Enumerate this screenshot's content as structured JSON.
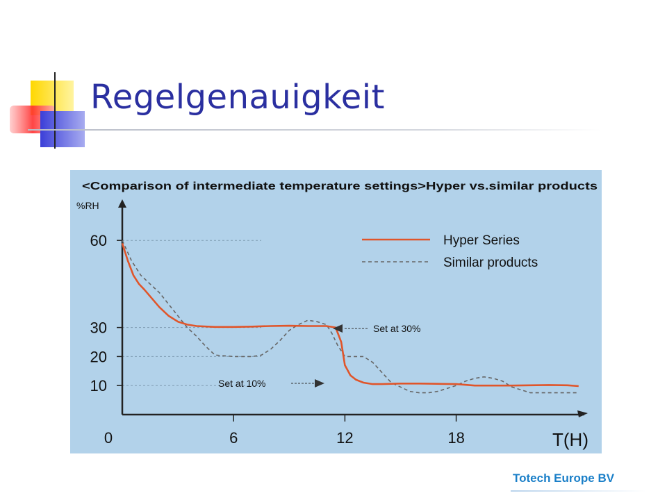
{
  "slide": {
    "title": "Regelgenauigkeit",
    "footer": "Totech Europe BV"
  },
  "chart_data": {
    "type": "line",
    "title": "<Comparison of intermediate temperature settings>Hyper vs.similar products",
    "xlabel": "T(H)",
    "ylabel": "%RH",
    "xlim": [
      0,
      25
    ],
    "ylim": [
      0,
      72
    ],
    "x_ticks": [
      0,
      6,
      12,
      18
    ],
    "x_tick_labels": [
      "0",
      "6",
      "12",
      "18"
    ],
    "y_ticks": [
      60,
      30,
      20,
      10
    ],
    "y_tick_labels": [
      "60",
      "30",
      "20",
      "10"
    ],
    "legend_position": "top-right",
    "background_color": "#b2d2ea",
    "series": [
      {
        "name": "Hyper Series",
        "style": "solid",
        "color": "#e0552a",
        "x": [
          0,
          0.3,
          0.6,
          0.9,
          1.2,
          1.6,
          2.0,
          2.5,
          3.0,
          3.5,
          4.0,
          5.0,
          6.0,
          7.0,
          8.0,
          9.0,
          10.0,
          11.0,
          11.5,
          11.8,
          12.0,
          12.3,
          12.6,
          13.0,
          13.5,
          14.0,
          15.0,
          16.0,
          17.0,
          18.0,
          19.0,
          20.0,
          21.0,
          22.0,
          23.0,
          24.0,
          24.6
        ],
        "y": [
          59,
          53,
          48,
          45,
          43,
          40,
          37,
          34,
          32,
          31,
          30.5,
          30.2,
          30.2,
          30.3,
          30.5,
          30.6,
          30.5,
          30.5,
          30,
          25,
          17,
          13.5,
          12,
          11,
          10.5,
          10.5,
          10.7,
          10.7,
          10.6,
          10.5,
          10.0,
          10.0,
          10.0,
          10.1,
          10.2,
          10.1,
          9.8
        ]
      },
      {
        "name": "Similar products",
        "style": "dashed",
        "color": "#666666",
        "x": [
          0,
          0.5,
          1.0,
          1.5,
          2.0,
          2.5,
          3.0,
          3.5,
          4.0,
          4.5,
          5.0,
          6.0,
          7.0,
          7.5,
          8.0,
          8.5,
          9.0,
          9.5,
          10.0,
          10.5,
          11.0,
          11.3,
          11.6,
          12.0,
          12.5,
          13.0,
          13.5,
          14.0,
          14.5,
          15.0,
          15.5,
          16.0,
          16.5,
          17.0,
          17.5,
          18.0,
          18.5,
          19.0,
          19.5,
          20.0,
          20.5,
          21.0,
          22.0,
          23.0,
          24.0,
          24.6
        ],
        "y": [
          60,
          53,
          48,
          45,
          42,
          38,
          34,
          30,
          27,
          23.5,
          20.5,
          20,
          20,
          20.5,
          22.5,
          25.5,
          29,
          31,
          32.5,
          32,
          31,
          28,
          24,
          20,
          20,
          20,
          18,
          14.5,
          11,
          9.5,
          8,
          7.5,
          7.5,
          8,
          9,
          10,
          11.5,
          12.5,
          13,
          12.5,
          11.5,
          9.5,
          7.5,
          7.5,
          7.5,
          7.5
        ]
      }
    ],
    "annotations": [
      "Set at 30%",
      "Set at 10%"
    ]
  }
}
